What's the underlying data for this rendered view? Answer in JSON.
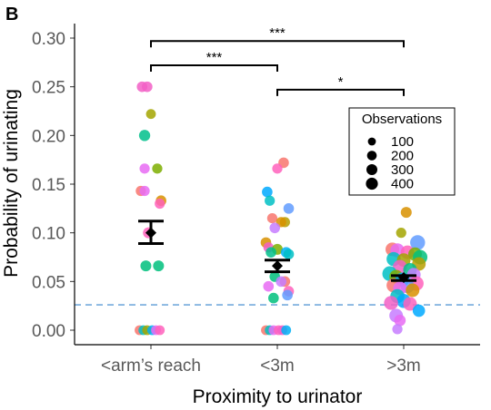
{
  "chart_data": {
    "type": "scatter",
    "panel_label": "B",
    "xlabel": "Proximity to urinator",
    "ylabel": "Probability of urinating",
    "categories": [
      "<arm’s reach",
      "<3m",
      ">3m"
    ],
    "ylim": [
      -0.01,
      0.31
    ],
    "yticks": [
      "0.00",
      "0.05",
      "0.10",
      "0.15",
      "0.20",
      "0.25",
      "0.30"
    ],
    "grid": false,
    "baseline": {
      "value": 0.026,
      "color": "#5b9bd5",
      "style": "dashed"
    },
    "summary": [
      {
        "category": "<arm’s reach",
        "mean": 0.1,
        "se_low": 0.089,
        "se_high": 0.112
      },
      {
        "category": "<3m",
        "mean": 0.066,
        "se_low": 0.06,
        "se_high": 0.072
      },
      {
        "category": ">3m",
        "mean": 0.054,
        "se_low": 0.051,
        "se_high": 0.056
      }
    ],
    "significance": [
      {
        "from": "<arm’s reach",
        "to": ">3m",
        "label": "***",
        "y": 0.297
      },
      {
        "from": "<arm’s reach",
        "to": "<3m",
        "label": "***",
        "y": 0.272
      },
      {
        "from": "<3m",
        "to": ">3m",
        "label": "*",
        "y": 0.247
      }
    ],
    "legend": {
      "title": "Observations",
      "position": "right",
      "entries": [
        {
          "label": "100",
          "size": 100
        },
        {
          "label": "200",
          "size": 200
        },
        {
          "label": "300",
          "size": 300
        },
        {
          "label": "400",
          "size": 400
        }
      ]
    },
    "points": [
      {
        "category": "<arm’s reach",
        "dx": -0.07,
        "y": 0.25,
        "size": 90,
        "color": "#f25fc5"
      },
      {
        "category": "<arm’s reach",
        "dx": -0.03,
        "y": 0.25,
        "size": 90,
        "color": "#f25fc5"
      },
      {
        "category": "<arm’s reach",
        "dx": 0.0,
        "y": 0.222,
        "size": 70,
        "color": "#a3a500"
      },
      {
        "category": "<arm’s reach",
        "dx": -0.05,
        "y": 0.2,
        "size": 110,
        "color": "#00c08b"
      },
      {
        "category": "<arm’s reach",
        "dx": 0.05,
        "y": 0.166,
        "size": 80,
        "color": "#7cae00"
      },
      {
        "category": "<arm’s reach",
        "dx": -0.05,
        "y": 0.166,
        "size": 80,
        "color": "#e76bf3"
      },
      {
        "category": "<arm’s reach",
        "dx": -0.08,
        "y": 0.143,
        "size": 80,
        "color": "#f8766d"
      },
      {
        "category": "<arm’s reach",
        "dx": -0.05,
        "y": 0.143,
        "size": 80,
        "color": "#e76bf3"
      },
      {
        "category": "<arm’s reach",
        "dx": 0.08,
        "y": 0.133,
        "size": 90,
        "color": "#d89000"
      },
      {
        "category": "<arm’s reach",
        "dx": 0.07,
        "y": 0.13,
        "size": 80,
        "color": "#ff62bc"
      },
      {
        "category": "<arm’s reach",
        "dx": -0.02,
        "y": 0.1,
        "size": 100,
        "color": "#ff62bc"
      },
      {
        "category": "<arm’s reach",
        "dx": -0.04,
        "y": 0.066,
        "size": 100,
        "color": "#00bf7d"
      },
      {
        "category": "<arm’s reach",
        "dx": 0.06,
        "y": 0.066,
        "size": 100,
        "color": "#00bf7d"
      },
      {
        "category": "<arm’s reach",
        "dx": -0.09,
        "y": 0.0,
        "size": 70,
        "color": "#f8766d"
      },
      {
        "category": "<arm’s reach",
        "dx": -0.06,
        "y": 0.0,
        "size": 70,
        "color": "#00bfc4"
      },
      {
        "category": "<arm’s reach",
        "dx": -0.03,
        "y": 0.0,
        "size": 70,
        "color": "#a3a500"
      },
      {
        "category": "<arm’s reach",
        "dx": 0.01,
        "y": 0.0,
        "size": 70,
        "color": "#00b0f6"
      },
      {
        "category": "<arm’s reach",
        "dx": 0.04,
        "y": 0.0,
        "size": 70,
        "color": "#e76bf3"
      },
      {
        "category": "<arm’s reach",
        "dx": 0.07,
        "y": 0.0,
        "size": 70,
        "color": "#ff62bc"
      },
      {
        "category": "<3m",
        "dx": 0.05,
        "y": 0.172,
        "size": 90,
        "color": "#f8766d"
      },
      {
        "category": "<3m",
        "dx": 0.0,
        "y": 0.166,
        "size": 80,
        "color": "#ff62bc"
      },
      {
        "category": "<3m",
        "dx": -0.08,
        "y": 0.142,
        "size": 90,
        "color": "#00a9ff"
      },
      {
        "category": "<3m",
        "dx": -0.06,
        "y": 0.133,
        "size": 80,
        "color": "#00bfc4"
      },
      {
        "category": "<3m",
        "dx": 0.09,
        "y": 0.125,
        "size": 90,
        "color": "#619cff"
      },
      {
        "category": "<3m",
        "dx": -0.04,
        "y": 0.115,
        "size": 80,
        "color": "#f8766d"
      },
      {
        "category": "<3m",
        "dx": 0.06,
        "y": 0.111,
        "size": 80,
        "color": "#b79f00"
      },
      {
        "category": "<3m",
        "dx": 0.03,
        "y": 0.111,
        "size": 80,
        "color": "#d89000"
      },
      {
        "category": "<3m",
        "dx": -0.02,
        "y": 0.105,
        "size": 90,
        "color": "#c77cff"
      },
      {
        "category": "<3m",
        "dx": -0.09,
        "y": 0.09,
        "size": 90,
        "color": "#d89000"
      },
      {
        "category": "<3m",
        "dx": -0.07,
        "y": 0.085,
        "size": 80,
        "color": "#f25fc5"
      },
      {
        "category": "<3m",
        "dx": 0.0,
        "y": 0.083,
        "size": 100,
        "color": "#7cae00"
      },
      {
        "category": "<3m",
        "dx": -0.05,
        "y": 0.08,
        "size": 90,
        "color": "#00c08b"
      },
      {
        "category": "<3m",
        "dx": 0.07,
        "y": 0.08,
        "size": 90,
        "color": "#00b0f6"
      },
      {
        "category": "<3m",
        "dx": 0.09,
        "y": 0.078,
        "size": 90,
        "color": "#00bfc4"
      },
      {
        "category": "<3m",
        "dx": -0.02,
        "y": 0.055,
        "size": 90,
        "color": "#00bf7d"
      },
      {
        "category": "<3m",
        "dx": 0.06,
        "y": 0.05,
        "size": 90,
        "color": "#f8766d"
      },
      {
        "category": "<3m",
        "dx": 0.03,
        "y": 0.05,
        "size": 90,
        "color": "#c77cff"
      },
      {
        "category": "<3m",
        "dx": -0.07,
        "y": 0.045,
        "size": 90,
        "color": "#e76bf3"
      },
      {
        "category": "<3m",
        "dx": 0.09,
        "y": 0.04,
        "size": 90,
        "color": "#ff62bc"
      },
      {
        "category": "<3m",
        "dx": 0.08,
        "y": 0.036,
        "size": 90,
        "color": "#619cff"
      },
      {
        "category": "<3m",
        "dx": -0.03,
        "y": 0.033,
        "size": 90,
        "color": "#00bf7d"
      },
      {
        "category": "<3m",
        "dx": -0.09,
        "y": 0.0,
        "size": 70,
        "color": "#f8766d"
      },
      {
        "category": "<3m",
        "dx": -0.06,
        "y": 0.0,
        "size": 70,
        "color": "#00bfc4"
      },
      {
        "category": "<3m",
        "dx": -0.03,
        "y": 0.0,
        "size": 70,
        "color": "#e76bf3"
      },
      {
        "category": "<3m",
        "dx": 0.01,
        "y": 0.0,
        "size": 70,
        "color": "#ff62bc"
      },
      {
        "category": "<3m",
        "dx": 0.04,
        "y": 0.0,
        "size": 70,
        "color": "#f25fc5"
      },
      {
        "category": "<3m",
        "dx": 0.07,
        "y": 0.0,
        "size": 70,
        "color": "#00b0f6"
      },
      {
        "category": ">3m",
        "dx": 0.02,
        "y": 0.121,
        "size": 100,
        "color": "#d89000"
      },
      {
        "category": ">3m",
        "dx": -0.02,
        "y": 0.1,
        "size": 80,
        "color": "#a3a500"
      },
      {
        "category": ">3m",
        "dx": 0.11,
        "y": 0.09,
        "size": 260,
        "color": "#619cff"
      },
      {
        "category": ">3m",
        "dx": -0.09,
        "y": 0.083,
        "size": 200,
        "color": "#f8766d"
      },
      {
        "category": ">3m",
        "dx": -0.05,
        "y": 0.082,
        "size": 220,
        "color": "#e76bf3"
      },
      {
        "category": ">3m",
        "dx": 0.03,
        "y": 0.08,
        "size": 200,
        "color": "#ff62bc"
      },
      {
        "category": ">3m",
        "dx": 0.09,
        "y": 0.078,
        "size": 200,
        "color": "#7cae00"
      },
      {
        "category": ">3m",
        "dx": 0.13,
        "y": 0.075,
        "size": 240,
        "color": "#00bf7d"
      },
      {
        "category": ">3m",
        "dx": -0.08,
        "y": 0.073,
        "size": 220,
        "color": "#00bfc4"
      },
      {
        "category": ">3m",
        "dx": 0.0,
        "y": 0.072,
        "size": 200,
        "color": "#a3a500"
      },
      {
        "category": ">3m",
        "dx": 0.12,
        "y": 0.068,
        "size": 200,
        "color": "#b79f00"
      },
      {
        "category": ">3m",
        "dx": -0.03,
        "y": 0.065,
        "size": 220,
        "color": "#f25fc5"
      },
      {
        "category": ">3m",
        "dx": 0.05,
        "y": 0.062,
        "size": 200,
        "color": "#00c08b"
      },
      {
        "category": ">3m",
        "dx": -0.11,
        "y": 0.058,
        "size": 260,
        "color": "#00bfc4"
      },
      {
        "category": ">3m",
        "dx": 0.08,
        "y": 0.057,
        "size": 200,
        "color": "#c77cff"
      },
      {
        "category": ">3m",
        "dx": -0.06,
        "y": 0.055,
        "size": 200,
        "color": "#7cae00"
      },
      {
        "category": ">3m",
        "dx": -0.01,
        "y": 0.052,
        "size": 220,
        "color": "#00b0f6"
      },
      {
        "category": ">3m",
        "dx": 0.1,
        "y": 0.048,
        "size": 240,
        "color": "#ff62bc"
      },
      {
        "category": ">3m",
        "dx": -0.08,
        "y": 0.046,
        "size": 220,
        "color": "#f8766d"
      },
      {
        "category": ">3m",
        "dx": 0.03,
        "y": 0.045,
        "size": 200,
        "color": "#619cff"
      },
      {
        "category": ">3m",
        "dx": -0.03,
        "y": 0.043,
        "size": 200,
        "color": "#e76bf3"
      },
      {
        "category": ">3m",
        "dx": 0.07,
        "y": 0.041,
        "size": 200,
        "color": "#d89000"
      },
      {
        "category": ">3m",
        "dx": -0.05,
        "y": 0.035,
        "size": 220,
        "color": "#00bfc4"
      },
      {
        "category": ">3m",
        "dx": 0.0,
        "y": 0.03,
        "size": 220,
        "color": "#00a9ff"
      },
      {
        "category": ">3m",
        "dx": -0.1,
        "y": 0.028,
        "size": 220,
        "color": "#f25fc5"
      },
      {
        "category": ">3m",
        "dx": 0.05,
        "y": 0.027,
        "size": 200,
        "color": "#ff62bc"
      },
      {
        "category": ">3m",
        "dx": 0.12,
        "y": 0.02,
        "size": 150,
        "color": "#00a9ff"
      },
      {
        "category": ">3m",
        "dx": -0.06,
        "y": 0.015,
        "size": 200,
        "color": "#c77cff"
      },
      {
        "category": ">3m",
        "dx": -0.03,
        "y": 0.01,
        "size": 120,
        "color": "#e76bf3"
      },
      {
        "category": ">3m",
        "dx": -0.05,
        "y": 0.001,
        "size": 80,
        "color": "#c77cff"
      }
    ]
  }
}
